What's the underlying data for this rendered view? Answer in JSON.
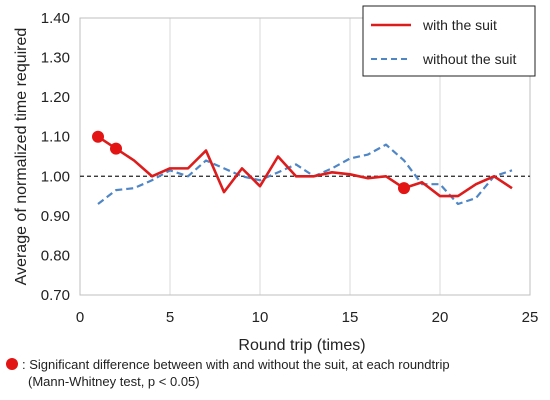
{
  "chart_data": {
    "type": "line",
    "xlabel": "Round trip (times)",
    "ylabel": "Average of normalized time required",
    "xlim": [
      0,
      25
    ],
    "ylim": [
      0.7,
      1.4
    ],
    "xticks": [
      "0",
      "5",
      "10",
      "15",
      "20",
      "25"
    ],
    "yticks": [
      "0.70",
      "0.80",
      "0.90",
      "1.00",
      "1.10",
      "1.20",
      "1.30",
      "1.40"
    ],
    "grid": "vertical",
    "legend_position": "top-right",
    "reference_line": 1.0,
    "series": [
      {
        "name": "with the suit",
        "color": "#dd1c1c",
        "style": "solid",
        "x": [
          1,
          2,
          3,
          4,
          5,
          6,
          7,
          8,
          9,
          10,
          11,
          12,
          13,
          14,
          15,
          16,
          17,
          18,
          19,
          20,
          21,
          22,
          23,
          24
        ],
        "y": [
          1.1,
          1.07,
          1.04,
          1.0,
          1.02,
          1.02,
          1.065,
          0.96,
          1.02,
          0.975,
          1.05,
          1.0,
          1.0,
          1.01,
          1.005,
          0.995,
          1.0,
          0.97,
          0.985,
          0.95,
          0.95,
          0.98,
          1.0,
          0.97
        ]
      },
      {
        "name": "without the suit",
        "color": "#4f86c6",
        "style": "dashed",
        "x": [
          1,
          2,
          3,
          4,
          5,
          6,
          7,
          8,
          9,
          10,
          11,
          12,
          13,
          14,
          15,
          16,
          17,
          18,
          19,
          20,
          21,
          22,
          23,
          24
        ],
        "y": [
          0.93,
          0.965,
          0.97,
          0.99,
          1.015,
          1.0,
          1.04,
          1.02,
          1.0,
          0.99,
          1.01,
          1.03,
          1.0,
          1.02,
          1.045,
          1.055,
          1.08,
          1.04,
          0.98,
          0.98,
          0.93,
          0.945,
          1.0,
          1.015
        ]
      }
    ],
    "significant_points": {
      "color": "#e31414",
      "x": [
        1,
        2,
        18
      ],
      "y": [
        1.1,
        1.07,
        0.97
      ]
    }
  },
  "note": {
    "line1": ": Significant difference between with and without the suit, at each roundtrip",
    "line2": "(Mann-Whitney test, p < 0.05)"
  }
}
